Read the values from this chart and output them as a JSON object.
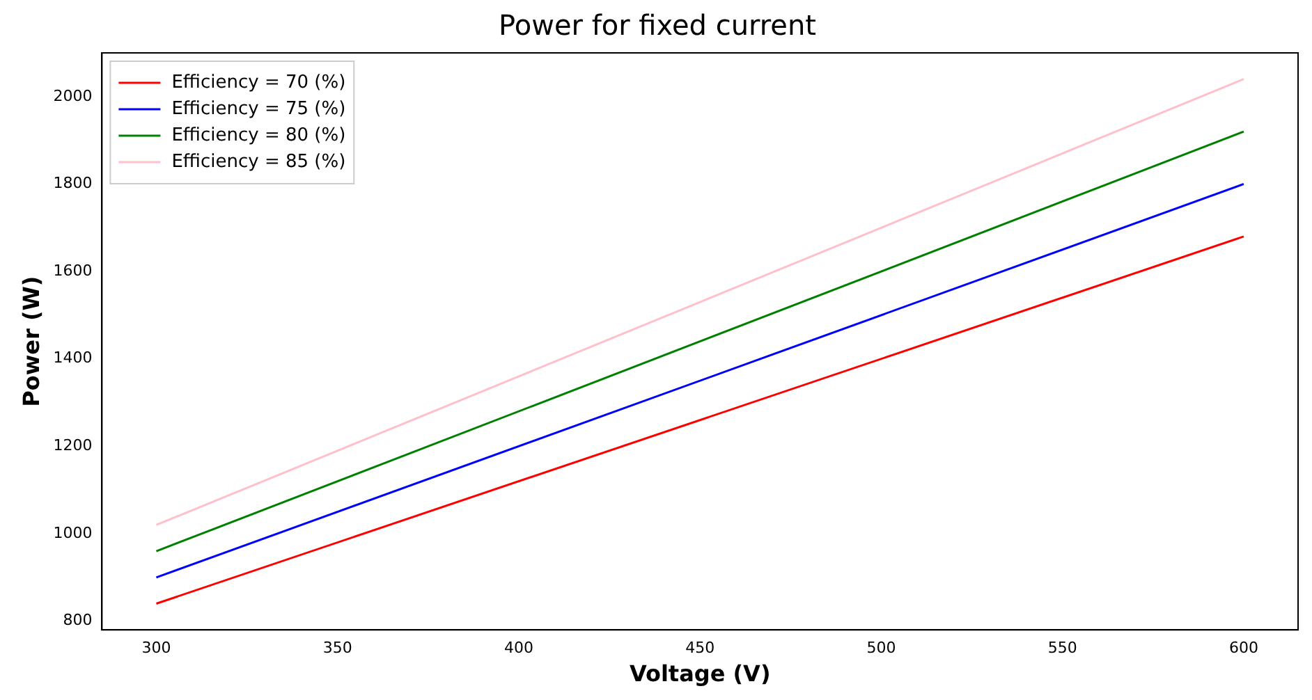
{
  "chart_data": {
    "type": "line",
    "title": "Power for fixed current",
    "xlabel": "Voltage (V)",
    "ylabel": "Power (W)",
    "x": [
      300,
      600
    ],
    "series": [
      {
        "name": "Efficiency = 70 (%)",
        "color": "#ff0000",
        "values": [
          840,
          1680
        ]
      },
      {
        "name": "Efficiency = 75 (%)",
        "color": "#0000ff",
        "values": [
          900,
          1800
        ]
      },
      {
        "name": "Efficiency = 80 (%)",
        "color": "#008000",
        "values": [
          960,
          1920
        ]
      },
      {
        "name": "Efficiency = 85 (%)",
        "color": "#ffc0cb",
        "values": [
          1020,
          2040
        ]
      }
    ],
    "xlim": [
      285,
      615
    ],
    "xticks": [
      300,
      350,
      400,
      450,
      500,
      550,
      600
    ],
    "ylim": [
      780,
      2100
    ],
    "yticks": [
      800,
      1000,
      1200,
      1400,
      1600,
      1800,
      2000
    ],
    "grid": false,
    "legend": "top left",
    "marker": "none",
    "line_style": "solid"
  }
}
